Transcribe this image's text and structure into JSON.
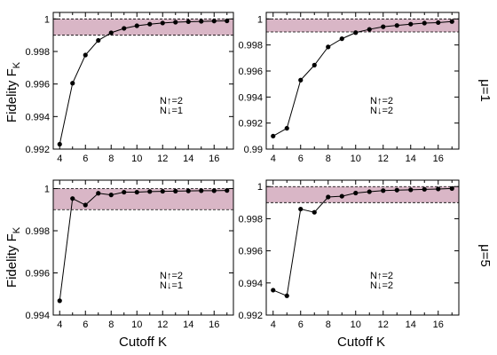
{
  "labels": {
    "ylabel_top": "Fidelity F",
    "ylabel_top_sub": "K",
    "ylabel_bottom": "Fidelity F",
    "ylabel_bottom_sub": "K",
    "xlabel_left": "Cutoff K",
    "xlabel_right": "Cutoff K",
    "mu_top": "μ=1",
    "mu_bottom": "μ=5"
  },
  "colors": {
    "band_fill": "#d9b6c6",
    "line": "#000000",
    "marker": "#000000"
  },
  "chart_data": [
    {
      "type": "line",
      "panel": "top-left",
      "x": [
        4,
        5,
        6,
        7,
        8,
        9,
        10,
        11,
        12,
        13,
        14,
        15,
        16,
        17
      ],
      "series": [
        {
          "values": [
            0.9923,
            0.99605,
            0.99778,
            0.99868,
            0.99915,
            0.99942,
            0.99958,
            0.99968,
            0.99975,
            0.9998,
            0.99983,
            0.99985,
            0.99987,
            0.99988
          ]
        }
      ],
      "band": [
        0.999,
        1.0
      ],
      "xlim": [
        3.5,
        17.5
      ],
      "ylim": [
        0.992,
        1.0004
      ],
      "xticks": [
        "4",
        "6",
        "8",
        "10",
        "12",
        "14",
        "16"
      ],
      "xtick_values": [
        4,
        6,
        8,
        10,
        12,
        14,
        16
      ],
      "yticks": [
        "0.992",
        "0.994",
        "0.996",
        "0.998",
        "1"
      ],
      "ytick_values": [
        0.992,
        0.994,
        0.996,
        0.998,
        1.0
      ],
      "annotation": [
        "N↑=2",
        "N↓=1"
      ],
      "grid": false
    },
    {
      "type": "line",
      "panel": "top-right",
      "x": [
        4,
        5,
        6,
        7,
        8,
        9,
        10,
        11,
        12,
        13,
        14,
        15,
        16,
        17
      ],
      "series": [
        {
          "values": [
            0.991,
            0.9916,
            0.9953,
            0.99645,
            0.99785,
            0.99848,
            0.99895,
            0.9992,
            0.9994,
            0.9995,
            0.9996,
            0.99968,
            0.99972,
            0.9998
          ]
        }
      ],
      "band": [
        0.999,
        1.0
      ],
      "xlim": [
        3.5,
        17.5
      ],
      "ylim": [
        0.99,
        1.0005
      ],
      "xticks": [
        "4",
        "6",
        "8",
        "10",
        "12",
        "14",
        "16"
      ],
      "xtick_values": [
        4,
        6,
        8,
        10,
        12,
        14,
        16
      ],
      "yticks": [
        "0.99",
        "0.992",
        "0.994",
        "0.996",
        "0.998",
        "1"
      ],
      "ytick_values": [
        0.99,
        0.992,
        0.994,
        0.996,
        0.998,
        1.0
      ],
      "annotation": [
        "N↑=2",
        "N↓=2"
      ],
      "grid": false
    },
    {
      "type": "line",
      "panel": "bottom-left",
      "x": [
        4,
        5,
        6,
        7,
        8,
        9,
        10,
        11,
        12,
        13,
        14,
        15,
        16,
        17
      ],
      "series": [
        {
          "values": [
            0.99468,
            0.99953,
            0.99922,
            0.99978,
            0.9997,
            0.99983,
            0.99983,
            0.99986,
            0.99987,
            0.99988,
            0.99989,
            0.9999,
            0.9999,
            0.99991
          ]
        }
      ],
      "band": [
        0.999,
        1.0
      ],
      "xlim": [
        3.5,
        17.5
      ],
      "ylim": [
        0.994,
        1.0004
      ],
      "xticks": [
        "4",
        "6",
        "8",
        "10",
        "12",
        "14",
        "16"
      ],
      "xtick_values": [
        4,
        6,
        8,
        10,
        12,
        14,
        16
      ],
      "yticks": [
        "0.994",
        "0.996",
        "0.998",
        "1"
      ],
      "ytick_values": [
        0.994,
        0.996,
        0.998,
        1.0
      ],
      "annotation": [
        "N↑=2",
        "N↓=1"
      ],
      "grid": false
    },
    {
      "type": "line",
      "panel": "bottom-right",
      "x": [
        4,
        5,
        6,
        7,
        8,
        9,
        10,
        11,
        12,
        13,
        14,
        15,
        16,
        17
      ],
      "series": [
        {
          "values": [
            0.99355,
            0.9932,
            0.9986,
            0.9984,
            0.99935,
            0.9994,
            0.9996,
            0.99968,
            0.99975,
            0.99978,
            0.9998,
            0.99983,
            0.99985,
            0.99988
          ]
        }
      ],
      "band": [
        0.999,
        1.0
      ],
      "xlim": [
        3.5,
        17.5
      ],
      "ylim": [
        0.992,
        1.0004
      ],
      "xticks": [
        "4",
        "6",
        "8",
        "10",
        "12",
        "14",
        "16"
      ],
      "xtick_values": [
        4,
        6,
        8,
        10,
        12,
        14,
        16
      ],
      "yticks": [
        "0.992",
        "0.994",
        "0.996",
        "0.998",
        "1"
      ],
      "ytick_values": [
        0.992,
        0.994,
        0.996,
        0.998,
        1.0
      ],
      "annotation": [
        "N↑=2",
        "N↓=2"
      ],
      "grid": false
    }
  ]
}
